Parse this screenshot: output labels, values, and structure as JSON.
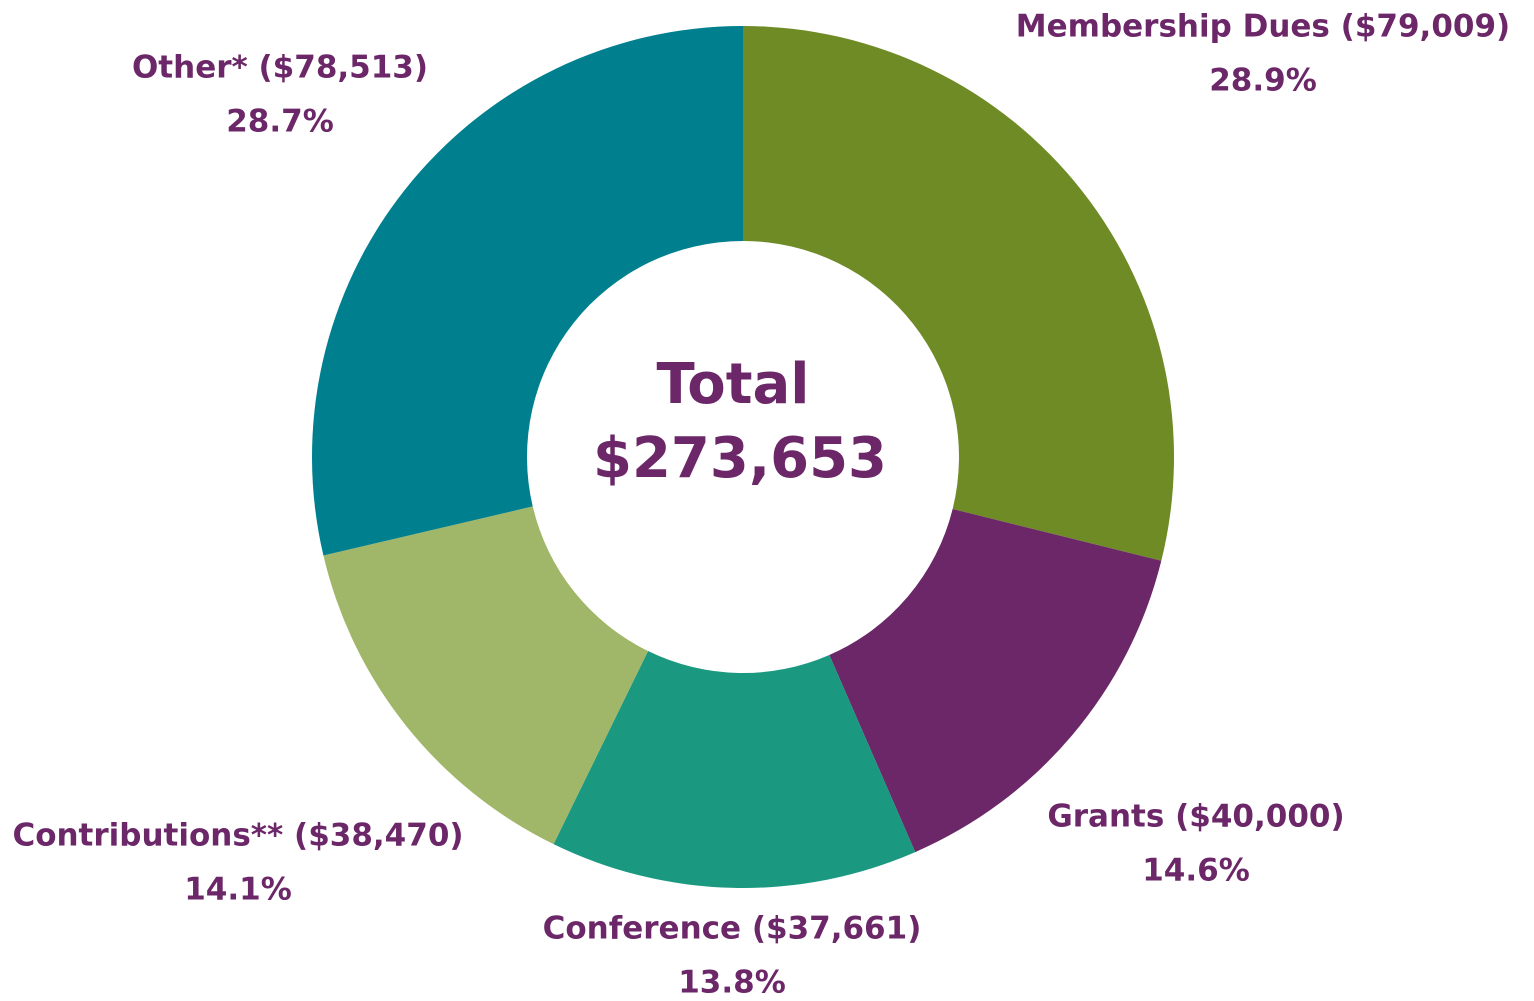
{
  "chart_data": {
    "type": "donut",
    "center_title": "Total",
    "center_value": "$273,653",
    "categories": [
      "Membership Dues ($79,009)",
      "Grants ($40,000)",
      "Conference ($37,661)",
      "Contributions** ($38,470)",
      "Other* ($78,513)"
    ],
    "values": [
      28.9,
      14.6,
      13.8,
      14.1,
      28.7
    ],
    "value_labels": [
      "28.9%",
      "14.6%",
      "13.8%",
      "14.1%",
      "28.7%"
    ],
    "colors": [
      "#6e8b26",
      "#6b2768",
      "#1a9980",
      "#a0b668",
      "#00808f"
    ]
  }
}
